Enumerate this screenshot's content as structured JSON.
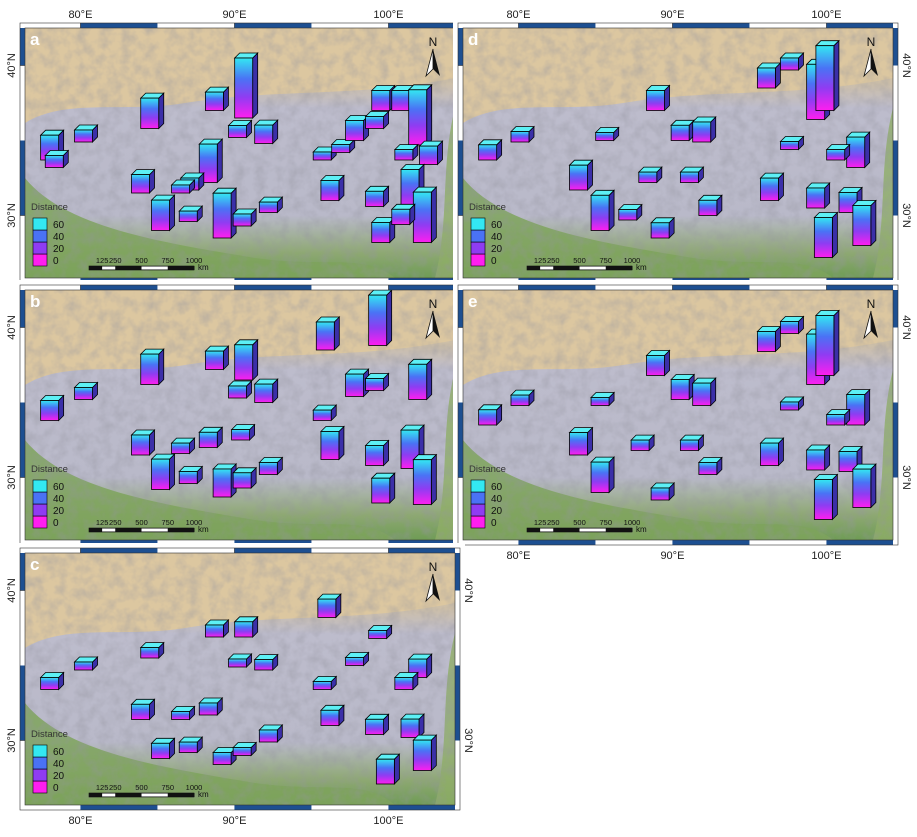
{
  "panels": [
    {
      "label": "a",
      "points": [
        {
          "lon": 78.0,
          "lat": 33.7,
          "value": 31
        },
        {
          "lon": 78.3,
          "lat": 33.2,
          "value": 15
        },
        {
          "lon": 80.2,
          "lat": 34.9,
          "value": 15
        },
        {
          "lon": 84.5,
          "lat": 35.8,
          "value": 38
        },
        {
          "lon": 88.7,
          "lat": 37.0,
          "value": 23
        },
        {
          "lon": 90.6,
          "lat": 36.5,
          "value": 75
        },
        {
          "lon": 90.2,
          "lat": 35.2,
          "value": 15
        },
        {
          "lon": 91.9,
          "lat": 34.8,
          "value": 23
        },
        {
          "lon": 88.3,
          "lat": 32.2,
          "value": 48
        },
        {
          "lon": 87.1,
          "lat": 31.7,
          "value": 15
        },
        {
          "lon": 86.5,
          "lat": 31.5,
          "value": 10
        },
        {
          "lon": 83.9,
          "lat": 31.5,
          "value": 23
        },
        {
          "lon": 85.2,
          "lat": 29.0,
          "value": 38
        },
        {
          "lon": 87.0,
          "lat": 29.6,
          "value": 13
        },
        {
          "lon": 89.2,
          "lat": 28.5,
          "value": 56
        },
        {
          "lon": 90.5,
          "lat": 29.3,
          "value": 15
        },
        {
          "lon": 92.2,
          "lat": 30.2,
          "value": 13
        },
        {
          "lon": 95.7,
          "lat": 33.7,
          "value": 10
        },
        {
          "lon": 96.9,
          "lat": 34.2,
          "value": 10
        },
        {
          "lon": 97.8,
          "lat": 35.0,
          "value": 25
        },
        {
          "lon": 99.1,
          "lat": 35.8,
          "value": 15
        },
        {
          "lon": 96.2,
          "lat": 31.0,
          "value": 25
        },
        {
          "lon": 99.5,
          "lat": 37.0,
          "value": 25
        },
        {
          "lon": 100.8,
          "lat": 37.0,
          "value": 25
        },
        {
          "lon": 101.9,
          "lat": 34.7,
          "value": 69
        },
        {
          "lon": 101.0,
          "lat": 33.7,
          "value": 13
        },
        {
          "lon": 102.6,
          "lat": 33.4,
          "value": 23
        },
        {
          "lon": 99.1,
          "lat": 30.6,
          "value": 19
        },
        {
          "lon": 99.5,
          "lat": 28.2,
          "value": 25
        },
        {
          "lon": 101.4,
          "lat": 30.4,
          "value": 50
        },
        {
          "lon": 102.2,
          "lat": 28.2,
          "value": 63
        },
        {
          "lon": 100.8,
          "lat": 29.4,
          "value": 19
        }
      ]
    },
    {
      "label": "d",
      "points": [
        {
          "lon": 78.0,
          "lat": 33.7,
          "value": 19
        },
        {
          "lon": 80.1,
          "lat": 34.9,
          "value": 13
        },
        {
          "lon": 83.9,
          "lat": 31.7,
          "value": 31
        },
        {
          "lon": 85.3,
          "lat": 29.0,
          "value": 44
        },
        {
          "lon": 87.1,
          "lat": 29.7,
          "value": 13
        },
        {
          "lon": 88.9,
          "lat": 37.0,
          "value": 25
        },
        {
          "lon": 90.5,
          "lat": 35.0,
          "value": 19
        },
        {
          "lon": 91.9,
          "lat": 34.9,
          "value": 25
        },
        {
          "lon": 89.2,
          "lat": 28.5,
          "value": 19
        },
        {
          "lon": 92.3,
          "lat": 30.0,
          "value": 19
        },
        {
          "lon": 96.3,
          "lat": 31.0,
          "value": 28
        },
        {
          "lon": 96.1,
          "lat": 38.5,
          "value": 25
        },
        {
          "lon": 97.6,
          "lat": 39.7,
          "value": 15
        },
        {
          "lon": 99.3,
          "lat": 36.4,
          "value": 69
        },
        {
          "lon": 99.9,
          "lat": 37.0,
          "value": 81
        },
        {
          "lon": 99.3,
          "lat": 30.5,
          "value": 25
        },
        {
          "lon": 99.8,
          "lat": 27.2,
          "value": 50
        },
        {
          "lon": 101.4,
          "lat": 30.2,
          "value": 25
        },
        {
          "lon": 102.3,
          "lat": 28.0,
          "value": 50
        },
        {
          "lon": 101.9,
          "lat": 33.2,
          "value": 38
        },
        {
          "lon": 97.6,
          "lat": 34.4,
          "value": 10
        },
        {
          "lon": 85.6,
          "lat": 35.0,
          "value": 10
        },
        {
          "lon": 88.4,
          "lat": 32.2,
          "value": 13
        },
        {
          "lon": 91.1,
          "lat": 32.2,
          "value": 13
        },
        {
          "lon": 100.6,
          "lat": 33.7,
          "value": 13
        }
      ]
    },
    {
      "label": "b",
      "points": [
        {
          "lon": 78.0,
          "lat": 33.8,
          "value": 25
        },
        {
          "lon": 80.2,
          "lat": 35.2,
          "value": 15
        },
        {
          "lon": 84.5,
          "lat": 36.2,
          "value": 38
        },
        {
          "lon": 88.7,
          "lat": 37.2,
          "value": 23
        },
        {
          "lon": 90.6,
          "lat": 36.5,
          "value": 44
        },
        {
          "lon": 90.2,
          "lat": 35.3,
          "value": 15
        },
        {
          "lon": 91.9,
          "lat": 35.0,
          "value": 23
        },
        {
          "lon": 83.9,
          "lat": 31.5,
          "value": 25
        },
        {
          "lon": 86.5,
          "lat": 31.6,
          "value": 13
        },
        {
          "lon": 88.3,
          "lat": 32.0,
          "value": 19
        },
        {
          "lon": 85.2,
          "lat": 29.2,
          "value": 38
        },
        {
          "lon": 87.0,
          "lat": 29.6,
          "value": 15
        },
        {
          "lon": 89.2,
          "lat": 28.7,
          "value": 35
        },
        {
          "lon": 90.5,
          "lat": 29.3,
          "value": 19
        },
        {
          "lon": 92.2,
          "lat": 30.2,
          "value": 15
        },
        {
          "lon": 95.9,
          "lat": 38.5,
          "value": 35
        },
        {
          "lon": 96.2,
          "lat": 31.2,
          "value": 35
        },
        {
          "lon": 99.3,
          "lat": 38.8,
          "value": 63
        },
        {
          "lon": 97.8,
          "lat": 35.4,
          "value": 28
        },
        {
          "lon": 99.1,
          "lat": 35.8,
          "value": 15
        },
        {
          "lon": 101.9,
          "lat": 35.2,
          "value": 44
        },
        {
          "lon": 101.4,
          "lat": 30.6,
          "value": 48
        },
        {
          "lon": 102.2,
          "lat": 28.2,
          "value": 56
        },
        {
          "lon": 99.5,
          "lat": 28.3,
          "value": 31
        },
        {
          "lon": 99.1,
          "lat": 30.8,
          "value": 25
        },
        {
          "lon": 95.7,
          "lat": 33.8,
          "value": 13
        },
        {
          "lon": 90.4,
          "lat": 32.5,
          "value": 13
        }
      ]
    },
    {
      "label": "e",
      "points": [
        {
          "lon": 78.0,
          "lat": 33.5,
          "value": 19
        },
        {
          "lon": 80.1,
          "lat": 34.8,
          "value": 13
        },
        {
          "lon": 83.9,
          "lat": 31.5,
          "value": 28
        },
        {
          "lon": 85.3,
          "lat": 29.0,
          "value": 38
        },
        {
          "lon": 88.9,
          "lat": 36.8,
          "value": 25
        },
        {
          "lon": 90.5,
          "lat": 35.2,
          "value": 25
        },
        {
          "lon": 91.9,
          "lat": 34.8,
          "value": 28
        },
        {
          "lon": 89.2,
          "lat": 28.5,
          "value": 15
        },
        {
          "lon": 92.3,
          "lat": 30.2,
          "value": 15
        },
        {
          "lon": 96.3,
          "lat": 30.8,
          "value": 28
        },
        {
          "lon": 96.1,
          "lat": 38.4,
          "value": 25
        },
        {
          "lon": 97.6,
          "lat": 39.6,
          "value": 15
        },
        {
          "lon": 99.3,
          "lat": 36.2,
          "value": 63
        },
        {
          "lon": 99.9,
          "lat": 36.8,
          "value": 75
        },
        {
          "lon": 99.3,
          "lat": 30.5,
          "value": 25
        },
        {
          "lon": 99.8,
          "lat": 27.2,
          "value": 50
        },
        {
          "lon": 101.4,
          "lat": 30.4,
          "value": 25
        },
        {
          "lon": 102.3,
          "lat": 28.0,
          "value": 48
        },
        {
          "lon": 101.9,
          "lat": 33.5,
          "value": 38
        },
        {
          "lon": 97.6,
          "lat": 34.5,
          "value": 10
        },
        {
          "lon": 85.3,
          "lat": 34.8,
          "value": 10
        },
        {
          "lon": 87.9,
          "lat": 31.8,
          "value": 13
        },
        {
          "lon": 91.1,
          "lat": 31.8,
          "value": 13
        },
        {
          "lon": 100.6,
          "lat": 33.5,
          "value": 13
        }
      ]
    },
    {
      "label": "c",
      "points": [
        {
          "lon": 78.0,
          "lat": 33.4,
          "value": 15
        },
        {
          "lon": 80.2,
          "lat": 34.7,
          "value": 10
        },
        {
          "lon": 84.5,
          "lat": 35.5,
          "value": 13
        },
        {
          "lon": 88.7,
          "lat": 36.9,
          "value": 15
        },
        {
          "lon": 90.6,
          "lat": 36.9,
          "value": 19
        },
        {
          "lon": 90.2,
          "lat": 34.9,
          "value": 10
        },
        {
          "lon": 91.9,
          "lat": 34.7,
          "value": 13
        },
        {
          "lon": 83.9,
          "lat": 31.4,
          "value": 19
        },
        {
          "lon": 86.5,
          "lat": 31.4,
          "value": 10
        },
        {
          "lon": 88.3,
          "lat": 31.7,
          "value": 15
        },
        {
          "lon": 85.2,
          "lat": 28.8,
          "value": 19
        },
        {
          "lon": 87.0,
          "lat": 29.2,
          "value": 13
        },
        {
          "lon": 89.2,
          "lat": 28.4,
          "value": 15
        },
        {
          "lon": 90.5,
          "lat": 29.0,
          "value": 10
        },
        {
          "lon": 92.2,
          "lat": 29.9,
          "value": 15
        },
        {
          "lon": 96.0,
          "lat": 38.2,
          "value": 23
        },
        {
          "lon": 96.2,
          "lat": 31.0,
          "value": 19
        },
        {
          "lon": 99.3,
          "lat": 36.8,
          "value": 10
        },
        {
          "lon": 97.8,
          "lat": 35.0,
          "value": 10
        },
        {
          "lon": 101.9,
          "lat": 34.2,
          "value": 23
        },
        {
          "lon": 101.4,
          "lat": 30.2,
          "value": 23
        },
        {
          "lon": 102.2,
          "lat": 28.0,
          "value": 38
        },
        {
          "lon": 99.8,
          "lat": 27.1,
          "value": 31
        },
        {
          "lon": 99.1,
          "lat": 30.4,
          "value": 19
        },
        {
          "lon": 95.7,
          "lat": 33.4,
          "value": 10
        },
        {
          "lon": 101.0,
          "lat": 33.4,
          "value": 15
        }
      ]
    }
  ],
  "lon_ticks": [
    {
      "value": 80,
      "label": "80°E"
    },
    {
      "value": 90,
      "label": "90°E"
    },
    {
      "value": 100,
      "label": "100°E"
    }
  ],
  "lat_ticks": [
    {
      "value": 40,
      "label": "40°N"
    },
    {
      "value": 30,
      "label": "30°N"
    }
  ],
  "north": "N",
  "legend": {
    "title": "Distance",
    "ticks": [
      0,
      20,
      40,
      60
    ]
  },
  "scale_bar": {
    "ticks": [
      125,
      250,
      500,
      750,
      1000
    ],
    "unit": "km"
  }
}
